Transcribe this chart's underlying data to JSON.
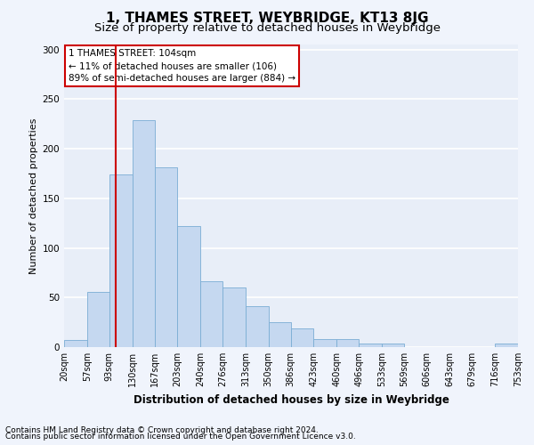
{
  "title": "1, THAMES STREET, WEYBRIDGE, KT13 8JG",
  "subtitle": "Size of property relative to detached houses in Weybridge",
  "xlabel": "Distribution of detached houses by size in Weybridge",
  "ylabel": "Number of detached properties",
  "footnote1": "Contains HM Land Registry data © Crown copyright and database right 2024.",
  "footnote2": "Contains public sector information licensed under the Open Government Licence v3.0.",
  "annotation_line1": "1 THAMES STREET: 104sqm",
  "annotation_line2": "← 11% of detached houses are smaller (106)",
  "annotation_line3": "89% of semi-detached houses are larger (884) →",
  "bar_color": "#c5d8f0",
  "bar_edge_color": "#7aadd4",
  "vline_color": "#cc0000",
  "vline_x": 104,
  "bin_edges": [
    20,
    57,
    93,
    130,
    167,
    203,
    240,
    276,
    313,
    350,
    386,
    423,
    460,
    496,
    533,
    569,
    606,
    643,
    679,
    716,
    753
  ],
  "bar_heights": [
    7,
    56,
    174,
    229,
    181,
    122,
    66,
    60,
    41,
    25,
    19,
    8,
    8,
    4,
    4,
    0,
    0,
    0,
    0,
    4
  ],
  "xlim": [
    20,
    753
  ],
  "ylim": [
    0,
    305
  ],
  "yticks": [
    0,
    50,
    100,
    150,
    200,
    250,
    300
  ],
  "background_color": "#e8eef8",
  "grid_color": "#ffffff",
  "title_fontsize": 11,
  "subtitle_fontsize": 9.5,
  "xlabel_fontsize": 8.5,
  "ylabel_fontsize": 8,
  "tick_label_fontsize": 7,
  "annotation_fontsize": 7.5,
  "footnote_fontsize": 6.5
}
